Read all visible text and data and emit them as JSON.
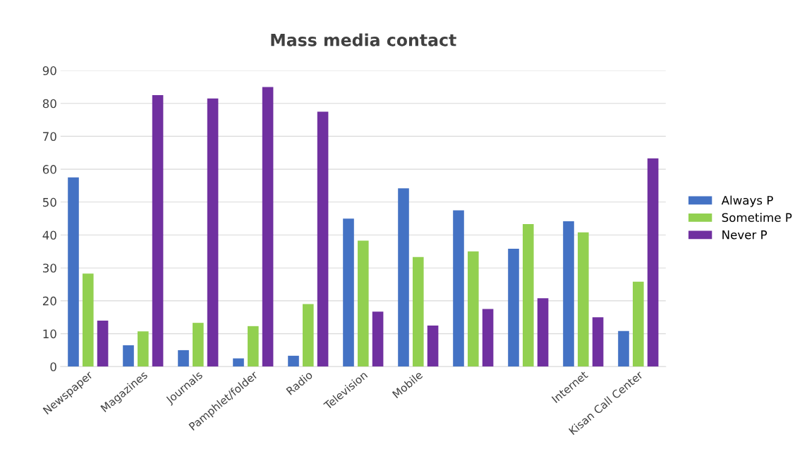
{
  "chart_data": {
    "type": "bar",
    "title": "Mass media contact",
    "categories": [
      "Newspaper",
      "Magazines",
      "Journals",
      "Pamphlet/folder",
      "Radio",
      "Television",
      "Mobile",
      null,
      null,
      "Internet",
      "Kisan Call Center"
    ],
    "series": [
      {
        "name": "Always P",
        "color": "#4472c4",
        "values": [
          57.5,
          6.5,
          5,
          2.5,
          3.3,
          45,
          54.2,
          47.5,
          35.8,
          44.2,
          10.8
        ]
      },
      {
        "name": "Sometime P",
        "color": "#92d050",
        "values": [
          28.3,
          10.7,
          13.3,
          12.3,
          19,
          38.3,
          33.3,
          35,
          43.3,
          40.8,
          25.8
        ]
      },
      {
        "name": "Never P",
        "color": "#7030a0",
        "values": [
          14,
          82.5,
          81.5,
          85,
          77.5,
          16.7,
          12.5,
          17.5,
          20.8,
          15,
          63.3
        ]
      }
    ],
    "ylim": [
      0,
      90
    ],
    "yticks": [
      0,
      10,
      20,
      30,
      40,
      50,
      60,
      70,
      80,
      90
    ],
    "grid": "y",
    "legend": "right"
  }
}
